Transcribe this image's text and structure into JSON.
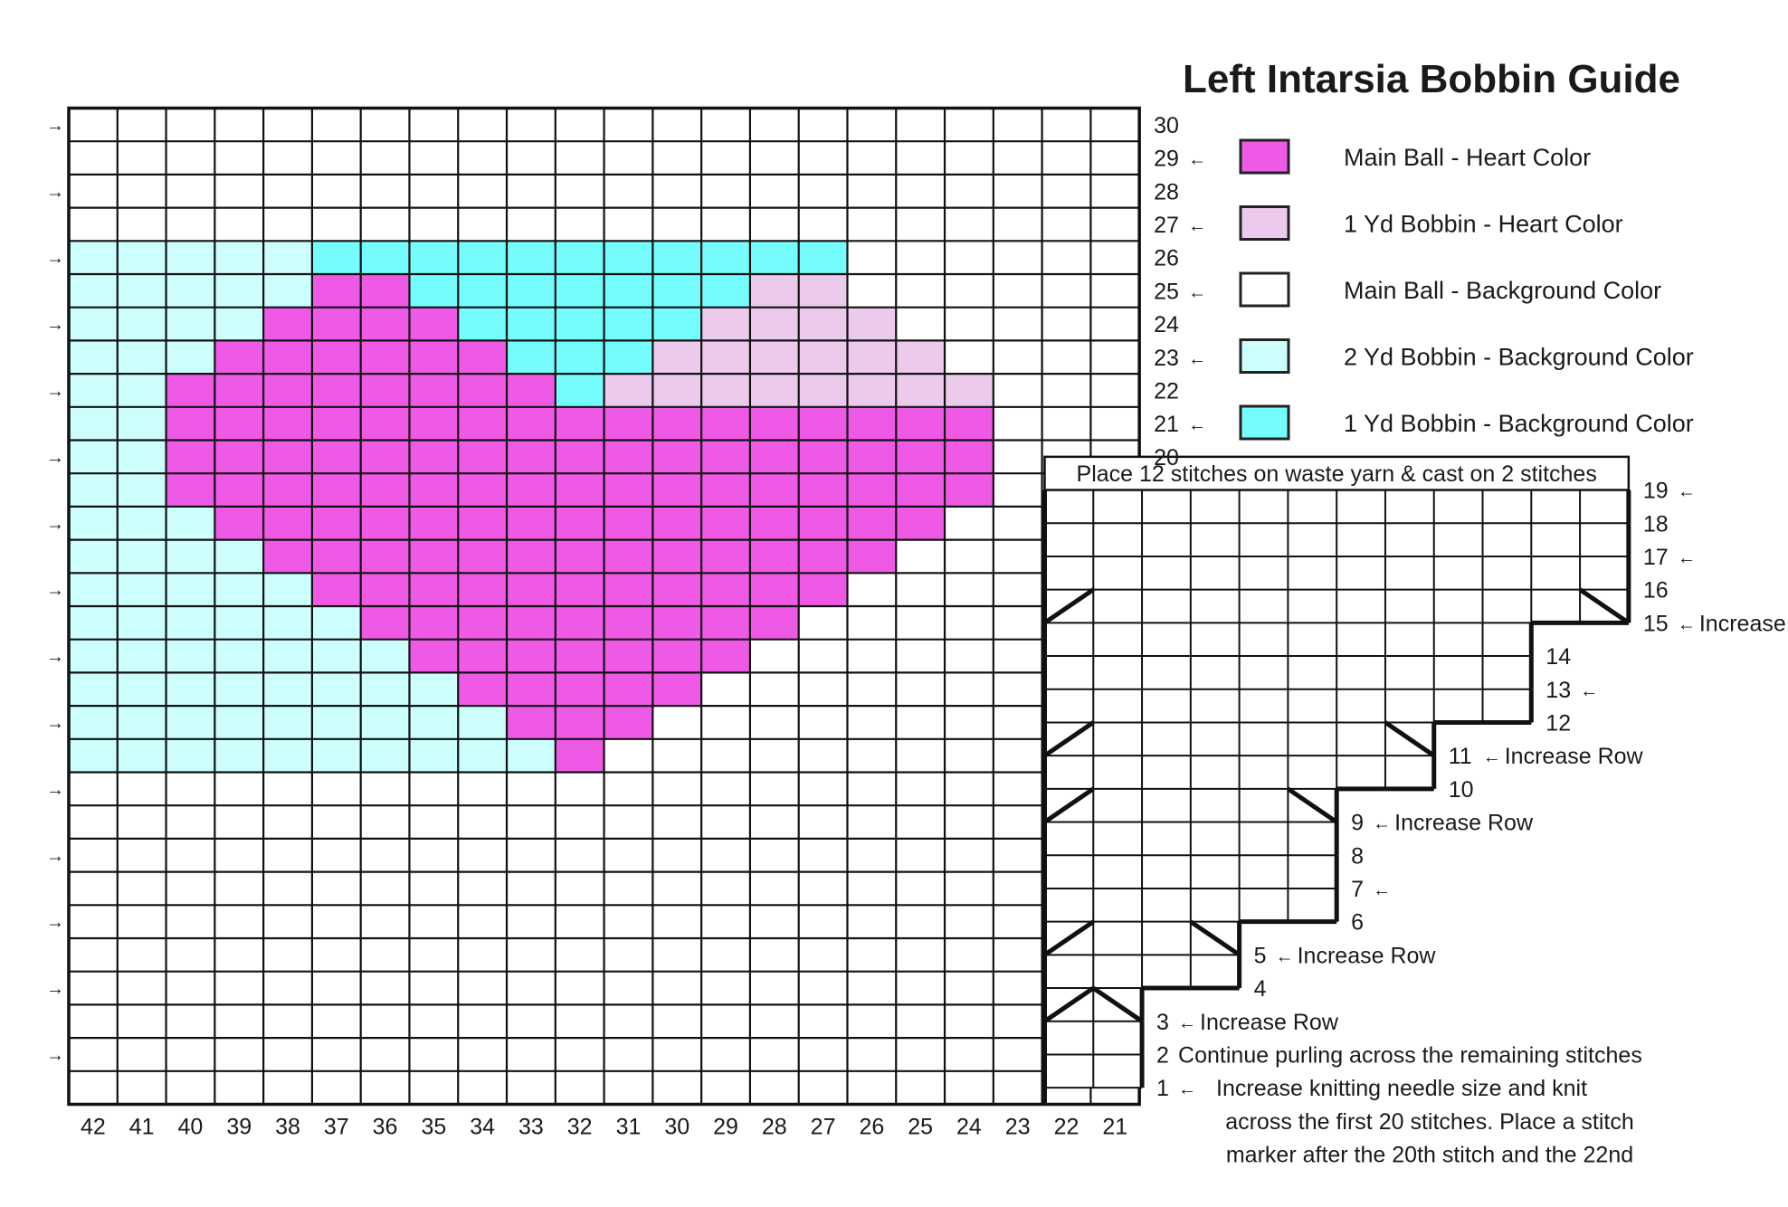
{
  "title": "Left Intarsia Bobbin Guide",
  "legend": [
    {
      "key": "M",
      "label": "Main Ball - Heart Color",
      "color": "#ee5ae6"
    },
    {
      "key": "L",
      "label": "1 Yd Bobbin - Heart Color",
      "color": "#ebcaeb"
    },
    {
      "key": "W",
      "label": "Main Ball - Background Color",
      "color": "#ffffff"
    },
    {
      "key": "B",
      "label": "2 Yd Bobbin - Background Color",
      "color": "#ccfefe"
    },
    {
      "key": "C",
      "label": "1 Yd Bobbin - Background Color",
      "color": "#75fcfc"
    }
  ],
  "columns": [
    42,
    41,
    40,
    39,
    38,
    37,
    36,
    35,
    34,
    33,
    32,
    31,
    30,
    29,
    28,
    27,
    26,
    25,
    24,
    23,
    22,
    21
  ],
  "rows_top_to_bottom": [
    30,
    29,
    28,
    27,
    26,
    25,
    24,
    23,
    22,
    21,
    20,
    19,
    18,
    17,
    16,
    15,
    14,
    13,
    12,
    11,
    10,
    9,
    8,
    7,
    6,
    5,
    4,
    3,
    2,
    1
  ],
  "grid": [
    "WWWWWWWWWWWWWWWWWWWWWW",
    "WWWWWWWWWWWWWWWWWWWWWW",
    "WWWWWWWWWWWWWWWWWWWWWW",
    "WWWWWWWWWWWWWWWWWWWWWW",
    "BBBBBCCCCCCCCCCCWWWWWW",
    "BBBBBMMCCCCCCCLLWWWWWW",
    "BBBBMMMMCCCCCLLLLWWWWW",
    "BBBMMMMMMCCCLLLLLLWWWW",
    "BBMMMMMMMMCLLLLLLLLWWW",
    "BBMMMMMMMMMMMMMMMMMWWW",
    "BBMMMMMMMMMMMMMMMMMWWW",
    "BBMMMMMMMMMMMMMMMMMWWW",
    "BBBMMMMMMMMMMMMMMMWWWW",
    "BBBBMMMMMMMMMMMMMWWWWW",
    "BBBBBMMMMMMMMMMMWWWWWW",
    "BBBBBBMMMMMMMMMWWWWWWW",
    "BBBBBBBMMMMMMMWWWWWWWW",
    "BBBBBBBBMMMMMWWWWWWWWW",
    "BBBBBBBBBMMMWWWWWWWWWW",
    "BBBBBBBBBBMWWWWWWWWWWW",
    "WWWWWWWWWWWWWWWWWWWWWW",
    "WWWWWWWWWWWWWWWWWWWWWW",
    "WWWWWWWWWWWWWWWWWWWWWW",
    "WWWWWWWWWWWWWWWWWWWWWW",
    "WWWWWWWWWWWWWWWWWWWWWW",
    "WWWWWWWWWWWWWWWWWWWWWW",
    "WWWWWWWWWWWWWWWWWWWWWW",
    "WWWWWWWWWWWWWWWWWWWWWW",
    "WWWWWWWWWWWWWWWWWWWWWW",
    "WWWWWWWWWWWWWWWWWWWWWW"
  ],
  "left_arrow_rows": [
    30,
    28,
    26,
    24,
    22,
    20,
    18,
    16,
    14,
    12,
    10,
    8,
    6,
    4,
    2
  ],
  "right_arrow_glyph": "→",
  "left_arrow_glyph": "←",
  "row_labels": [
    {
      "row": 30,
      "num": "30",
      "arrow": false,
      "note": ""
    },
    {
      "row": 29,
      "num": "29",
      "arrow": true,
      "note": ""
    },
    {
      "row": 28,
      "num": "28",
      "arrow": false,
      "note": ""
    },
    {
      "row": 27,
      "num": "27",
      "arrow": true,
      "note": ""
    },
    {
      "row": 26,
      "num": "26",
      "arrow": false,
      "note": ""
    },
    {
      "row": 25,
      "num": "25",
      "arrow": true,
      "note": ""
    },
    {
      "row": 24,
      "num": "24",
      "arrow": false,
      "note": ""
    },
    {
      "row": 23,
      "num": "23",
      "arrow": true,
      "note": ""
    },
    {
      "row": 22,
      "num": "22",
      "arrow": false,
      "note": ""
    },
    {
      "row": 21,
      "num": "21",
      "arrow": true,
      "note": ""
    },
    {
      "row": 20,
      "num": "20",
      "arrow": false,
      "note": ""
    },
    {
      "row": 19,
      "num": "19",
      "arrow": true,
      "note": ""
    },
    {
      "row": 18,
      "num": "18",
      "arrow": false,
      "note": ""
    },
    {
      "row": 17,
      "num": "17",
      "arrow": true,
      "note": ""
    },
    {
      "row": 16,
      "num": "16",
      "arrow": false,
      "note": ""
    },
    {
      "row": 15,
      "num": "15",
      "arrow": true,
      "note": "Increase Row"
    },
    {
      "row": 14,
      "num": "14",
      "arrow": false,
      "note": ""
    },
    {
      "row": 13,
      "num": "13",
      "arrow": true,
      "note": ""
    },
    {
      "row": 12,
      "num": "12",
      "arrow": false,
      "note": ""
    },
    {
      "row": 11,
      "num": "11",
      "arrow": true,
      "note": "Increase Row"
    },
    {
      "row": 10,
      "num": "10",
      "arrow": false,
      "note": ""
    },
    {
      "row": 9,
      "num": "9",
      "arrow": true,
      "note": "Increase Row"
    },
    {
      "row": 8,
      "num": "8",
      "arrow": false,
      "note": ""
    },
    {
      "row": 7,
      "num": "7",
      "arrow": true,
      "note": ""
    },
    {
      "row": 6,
      "num": "6",
      "arrow": false,
      "note": ""
    },
    {
      "row": 5,
      "num": "5",
      "arrow": true,
      "note": "Increase Row"
    },
    {
      "row": 4,
      "num": "4",
      "arrow": false,
      "note": ""
    },
    {
      "row": 3,
      "num": "3",
      "arrow": true,
      "note": "Increase Row"
    },
    {
      "row": 2,
      "num": "2",
      "arrow": false,
      "note": "Continue purling across the remaining stitches"
    },
    {
      "row": 1,
      "num": "1",
      "arrow": true,
      "note": "Increase knitting needle size and knit"
    }
  ],
  "row1_note_continuation": [
    "across the first 20 stitches. Place a stitch",
    "marker after the 20th stitch and the 22nd"
  ],
  "waste_yarn_note": "Place 12 stitches on waste yarn & cast on 2 stitches",
  "right_section": {
    "rows_top_to_bottom": [
      18,
      17,
      16,
      15,
      14,
      13,
      12,
      11,
      10,
      9,
      8,
      7,
      6,
      5,
      4,
      3,
      2,
      1
    ],
    "stitch_counts": [
      12,
      12,
      12,
      12,
      10,
      10,
      10,
      8,
      8,
      6,
      6,
      6,
      6,
      4,
      4,
      2,
      2,
      2
    ],
    "increase_rows": [
      15,
      11,
      9,
      5,
      3
    ]
  }
}
